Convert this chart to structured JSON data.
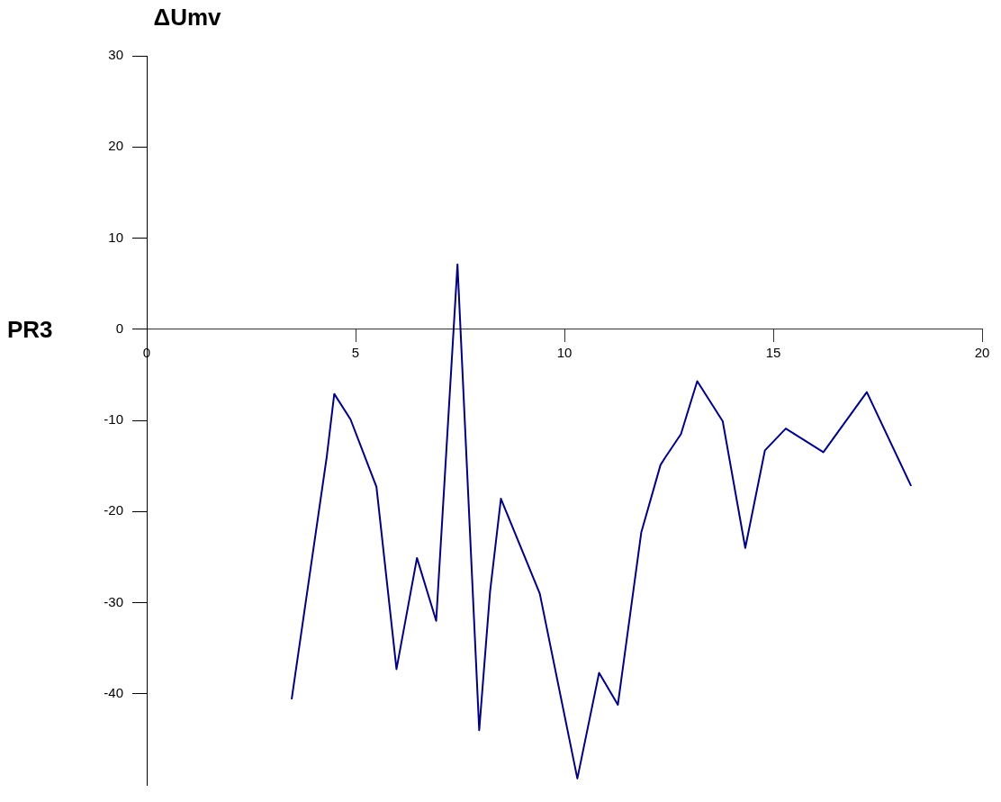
{
  "chart_data": {
    "type": "line",
    "ylabel": "ΔUmv",
    "annotations": [
      "PR3"
    ],
    "x": [
      3.47,
      4.31,
      4.49,
      4.88,
      5.5,
      5.98,
      6.47,
      6.93,
      7.44,
      7.96,
      8.22,
      8.48,
      9.41,
      10.31,
      10.83,
      11.28,
      11.84,
      12.3,
      12.41,
      12.79,
      13.18,
      13.79,
      14.33,
      14.8,
      15.3,
      16.2,
      17.24,
      18.3
    ],
    "series": [
      {
        "color": "#000080",
        "values": [
          -40.6,
          -14,
          -7.1,
          -9.9,
          -17.3,
          -37.3,
          -25.1,
          -32,
          7.1,
          -44,
          -28.8,
          -18.6,
          -29,
          -49.3,
          -37.7,
          -41.2,
          -22.3,
          -14.9,
          -14.1,
          -11.5,
          -5.7,
          -10.1,
          -24,
          -13.3,
          -10.9,
          -13.5,
          -6.9,
          -17.2
        ]
      }
    ],
    "xlim": [
      0,
      20
    ],
    "xticks": [
      0,
      5,
      10,
      15,
      20
    ],
    "ylim": [
      -50,
      30
    ],
    "yticks": [
      -40,
      -30,
      -20,
      -10,
      0,
      10,
      20,
      30
    ],
    "grid": false,
    "legend": false,
    "marker": "none",
    "line_style": "solid"
  }
}
